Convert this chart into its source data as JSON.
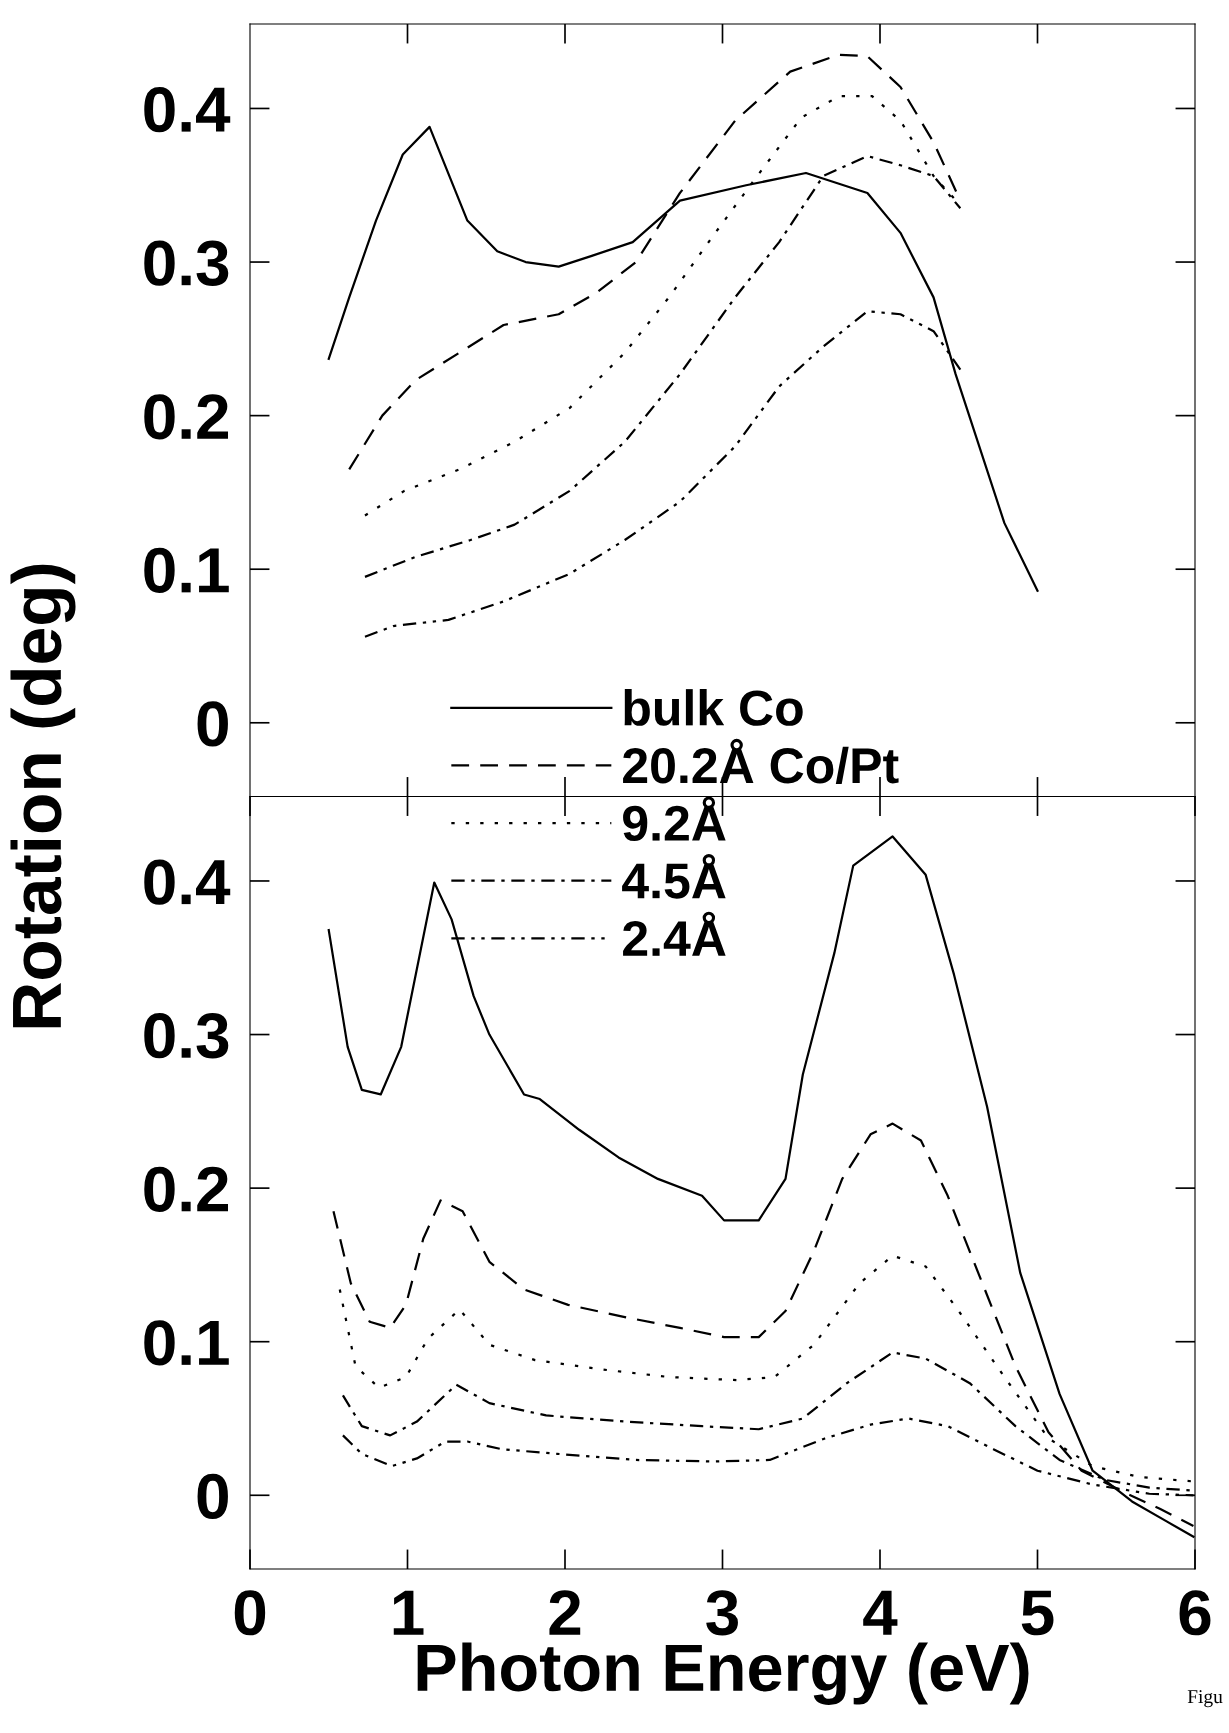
{
  "chart_data": [
    {
      "type": "line",
      "ylabel": "Rotation (deg)",
      "xlim": [
        0,
        6
      ],
      "xticks": [
        {
          "value": 1,
          "label": null
        },
        {
          "value": 2,
          "label": null
        },
        {
          "value": 3,
          "label": null
        },
        {
          "value": 4,
          "label": null
        },
        {
          "value": 5,
          "label": null
        }
      ],
      "ylim": [
        -0.048,
        0.455
      ],
      "yticks": [
        0,
        0.1,
        0.2,
        0.3,
        0.4
      ],
      "tick_labels": "y",
      "grid": false,
      "legend": "bottom",
      "color": "#000000",
      "series": [
        {
          "name": "bulk Co",
          "line_style": "solid",
          "x": [
            0.5,
            0.63,
            0.8,
            0.97,
            1.14,
            1.38,
            1.57,
            1.75,
            1.96,
            2.17,
            2.43,
            2.73,
            3.15,
            3.53,
            3.92,
            4.13,
            4.34,
            4.48,
            4.79,
            5.0
          ],
          "values": [
            0.237,
            0.277,
            0.327,
            0.37,
            0.388,
            0.327,
            0.307,
            0.3,
            0.297,
            0.304,
            0.313,
            0.34,
            0.35,
            0.358,
            0.345,
            0.319,
            0.277,
            0.227,
            0.13,
            0.086
          ]
        },
        {
          "name": "20.2Å Co/Pt",
          "line_style": "dashed",
          "x": [
            0.63,
            0.84,
            1.05,
            1.33,
            1.61,
            1.96,
            2.2,
            2.45,
            2.73,
            3.08,
            3.43,
            3.74,
            3.92,
            4.13,
            4.34,
            4.51
          ],
          "values": [
            0.165,
            0.2,
            0.223,
            0.241,
            0.259,
            0.266,
            0.28,
            0.3,
            0.345,
            0.392,
            0.424,
            0.435,
            0.434,
            0.414,
            0.378,
            0.34
          ]
        },
        {
          "name": "9.2Å",
          "line_style": "dotted",
          "x": [
            0.73,
            0.98,
            1.33,
            1.68,
            2.03,
            2.38,
            2.66,
            2.94,
            3.22,
            3.5,
            3.74,
            3.95,
            4.13,
            4.34,
            4.51
          ],
          "values": [
            0.135,
            0.151,
            0.165,
            0.183,
            0.205,
            0.241,
            0.277,
            0.317,
            0.356,
            0.394,
            0.408,
            0.408,
            0.392,
            0.356,
            0.337
          ]
        },
        {
          "name": "4.5Å",
          "line_style": "dashdot",
          "x": [
            0.73,
            1.05,
            1.4,
            1.68,
            2.03,
            2.38,
            2.73,
            3.08,
            3.36,
            3.64,
            3.92,
            4.13,
            4.34,
            4.51
          ],
          "values": [
            0.095,
            0.108,
            0.119,
            0.129,
            0.151,
            0.183,
            0.227,
            0.277,
            0.313,
            0.356,
            0.369,
            0.363,
            0.356,
            0.335
          ]
        },
        {
          "name": "2.4Å",
          "line_style": "dashdotdot",
          "x": [
            0.73,
            0.91,
            1.26,
            1.61,
            2.03,
            2.38,
            2.73,
            3.08,
            3.36,
            3.64,
            3.92,
            4.13,
            4.34,
            4.51
          ],
          "values": [
            0.056,
            0.063,
            0.067,
            0.079,
            0.097,
            0.119,
            0.144,
            0.18,
            0.219,
            0.245,
            0.268,
            0.266,
            0.255,
            0.23
          ]
        }
      ]
    },
    {
      "type": "line",
      "xlabel": "Photon Energy (eV)",
      "xlim": [
        0,
        6
      ],
      "xticks": [
        0,
        1,
        2,
        3,
        4,
        5,
        6
      ],
      "ylim": [
        -0.048,
        0.455
      ],
      "yticks": [
        0,
        0.1,
        0.2,
        0.3,
        0.4
      ],
      "grid": false,
      "color": "#000000",
      "annotations": [
        {
          "text": "Figu"
        }
      ],
      "series": [
        {
          "line_style": "solid",
          "x": [
            0.5,
            0.62,
            0.71,
            0.83,
            0.96,
            1.17,
            1.28,
            1.42,
            1.52,
            1.74,
            1.84,
            2.09,
            2.34,
            2.59,
            2.87,
            3.01,
            3.23,
            3.4,
            3.51,
            3.71,
            3.83,
            4.08,
            4.29,
            4.47,
            4.68,
            4.89,
            5.14,
            5.35,
            5.6,
            5.82,
            5.99
          ],
          "values": [
            0.368,
            0.292,
            0.264,
            0.261,
            0.292,
            0.399,
            0.375,
            0.325,
            0.3,
            0.261,
            0.258,
            0.238,
            0.22,
            0.206,
            0.195,
            0.179,
            0.179,
            0.206,
            0.274,
            0.353,
            0.41,
            0.429,
            0.404,
            0.339,
            0.253,
            0.145,
            0.066,
            0.016,
            -0.004,
            -0.017,
            -0.027
          ]
        },
        {
          "line_style": "dashed",
          "x": [
            0.53,
            0.64,
            0.76,
            0.89,
            0.99,
            1.1,
            1.21,
            1.35,
            1.52,
            1.74,
            2.02,
            2.38,
            2.73,
            3.01,
            3.23,
            3.4,
            3.58,
            3.76,
            3.94,
            4.08,
            4.26,
            4.43,
            4.65,
            4.86,
            5.07,
            5.28,
            5.57,
            5.78,
            5.99
          ],
          "values": [
            0.185,
            0.138,
            0.113,
            0.109,
            0.124,
            0.167,
            0.192,
            0.185,
            0.152,
            0.134,
            0.124,
            0.116,
            0.109,
            0.103,
            0.103,
            0.12,
            0.159,
            0.206,
            0.235,
            0.242,
            0.231,
            0.195,
            0.138,
            0.084,
            0.041,
            0.016,
            0.001,
            -0.009,
            -0.02
          ]
        },
        {
          "line_style": "dotted",
          "x": [
            0.57,
            0.67,
            0.82,
            0.99,
            1.13,
            1.33,
            1.52,
            1.81,
            2.23,
            2.66,
            3.09,
            3.33,
            3.58,
            3.87,
            4.08,
            4.29,
            4.5,
            4.79,
            5.07,
            5.35,
            5.64,
            5.99
          ],
          "values": [
            0.134,
            0.084,
            0.07,
            0.077,
            0.102,
            0.121,
            0.098,
            0.088,
            0.082,
            0.077,
            0.075,
            0.077,
            0.098,
            0.138,
            0.156,
            0.149,
            0.12,
            0.077,
            0.037,
            0.019,
            0.012,
            0.009
          ]
        },
        {
          "line_style": "dashdot",
          "x": [
            0.59,
            0.71,
            0.89,
            1.06,
            1.31,
            1.52,
            1.88,
            2.38,
            2.87,
            3.23,
            3.51,
            3.79,
            4.08,
            4.29,
            4.57,
            4.86,
            5.14,
            5.43,
            5.71,
            5.99
          ],
          "values": [
            0.065,
            0.045,
            0.039,
            0.048,
            0.072,
            0.06,
            0.052,
            0.048,
            0.045,
            0.043,
            0.05,
            0.073,
            0.093,
            0.089,
            0.073,
            0.045,
            0.023,
            0.01,
            0.005,
            0.003
          ]
        },
        {
          "line_style": "dashdotdot",
          "x": [
            0.59,
            0.71,
            0.9,
            1.06,
            1.24,
            1.38,
            1.6,
            1.95,
            2.45,
            2.94,
            3.3,
            3.65,
            3.94,
            4.18,
            4.43,
            4.72,
            5.0,
            5.35,
            5.71,
            5.99
          ],
          "values": [
            0.039,
            0.027,
            0.019,
            0.024,
            0.035,
            0.035,
            0.03,
            0.027,
            0.023,
            0.022,
            0.023,
            0.037,
            0.046,
            0.05,
            0.045,
            0.03,
            0.016,
            0.007,
            0.001,
            0.0
          ]
        }
      ]
    }
  ]
}
